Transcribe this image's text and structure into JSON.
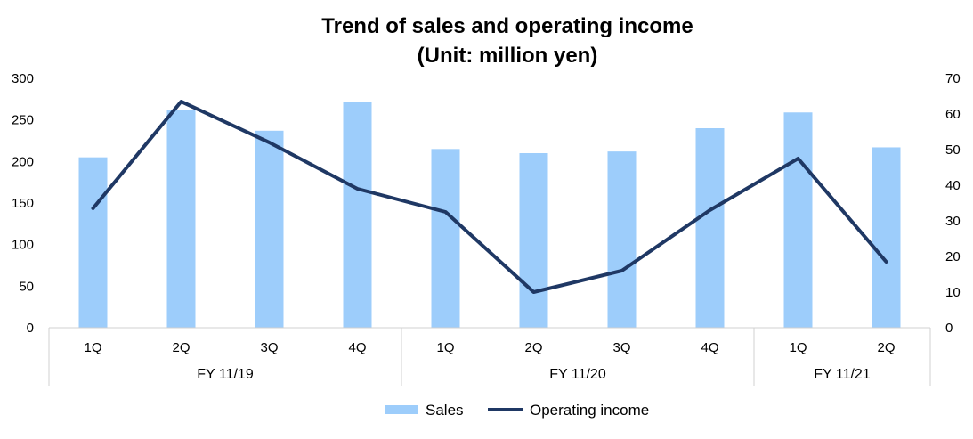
{
  "chart_data": {
    "type": "bar+line",
    "title_lines": [
      "Trend of sales and operating income",
      "(Unit: million yen)"
    ],
    "categories": [
      "1Q",
      "2Q",
      "3Q",
      "4Q",
      "1Q",
      "2Q",
      "3Q",
      "4Q",
      "1Q",
      "2Q"
    ],
    "groups": [
      {
        "label": "FY 11/19",
        "count": 4
      },
      {
        "label": "FY 11/20",
        "count": 4
      },
      {
        "label": "FY 11/21",
        "count": 2
      }
    ],
    "series": [
      {
        "name": "Sales",
        "type": "bar",
        "axis": "left",
        "color": "#9dcdfb",
        "values": [
          205,
          262,
          237,
          272,
          215,
          210,
          212,
          240,
          259,
          217
        ]
      },
      {
        "name": "Operating income",
        "type": "line",
        "axis": "right",
        "color": "#1f3864",
        "values": [
          33.5,
          63.5,
          52,
          39,
          32.5,
          10,
          16,
          33,
          47.5,
          18.5
        ]
      }
    ],
    "y_left": {
      "min": 0,
      "max": 300,
      "ticks": [
        0,
        50,
        100,
        150,
        200,
        250,
        300
      ]
    },
    "y_right": {
      "min": 0,
      "max": 70,
      "ticks": [
        0,
        10,
        20,
        30,
        40,
        50,
        60,
        70
      ]
    },
    "grid": false,
    "legend_position": "bottom"
  }
}
